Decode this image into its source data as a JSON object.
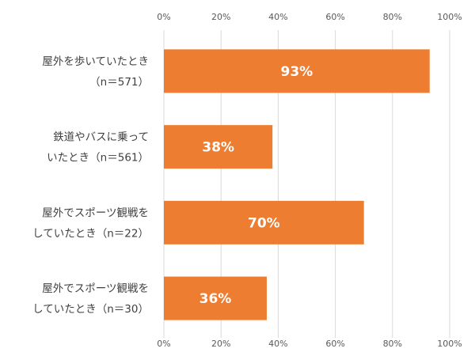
{
  "chart_data": {
    "type": "bar",
    "orientation": "horizontal",
    "categories": [
      [
        "屋外を歩いていたとき",
        "（n＝571）"
      ],
      [
        "鉄道やバスに乗って",
        "いたとき（n＝561）"
      ],
      [
        "屋外でスポーツ観戦を",
        "していたとき（n＝22）"
      ],
      [
        "屋外でスポーツ観戦を",
        "していたとき（n＝30）"
      ]
    ],
    "values": [
      93,
      38,
      70,
      36
    ],
    "data_labels": [
      "93%",
      "38%",
      "70%",
      "36%"
    ],
    "xlim": [
      0,
      100
    ],
    "x_ticks": [
      0,
      20,
      40,
      60,
      80,
      100
    ],
    "x_tick_labels": [
      "0%",
      "20%",
      "40%",
      "60%",
      "80%",
      "100%"
    ],
    "x_axis_position": "top and bottom",
    "grid": true,
    "legend": "none",
    "bar_color": "#ED7D31",
    "grid_color": "#D9D9D9"
  }
}
